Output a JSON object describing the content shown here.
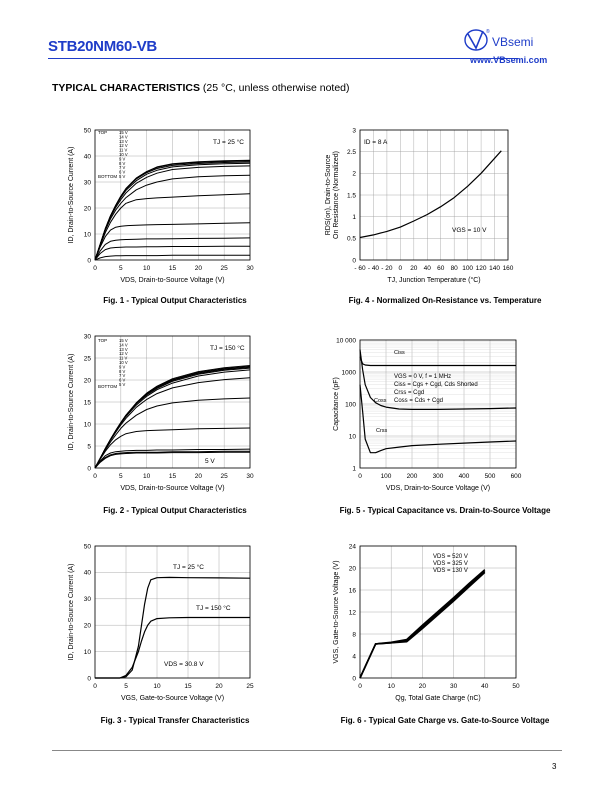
{
  "header": {
    "part_number": "STB20NM60-VB",
    "brand": "VBsemi",
    "url": "www.VBsemi.com",
    "reg": "®"
  },
  "section": {
    "title_bold": "TYPICAL CHARACTERISTICS",
    "title_rest": " (25 °C, unless otherwise noted)"
  },
  "page_number": "3",
  "charts": [
    {
      "id": "fig1",
      "caption": "Fig. 1 - Typical Output Characteristics",
      "xlabel": "VDS, Drain-to-Source Voltage (V)",
      "ylabel": "ID, Drain-to-Source Current (A)",
      "xticks": [
        "0",
        "5",
        "10",
        "15",
        "20",
        "25",
        "30"
      ],
      "yticks": [
        "0",
        "10",
        "20",
        "30",
        "40",
        "50"
      ],
      "annotation": "TJ = 25 °C",
      "legend_top": "TOP",
      "legend_bottom": "BOTTOM",
      "legend_voltages": [
        "15 V",
        "14 V",
        "13 V",
        "12 V",
        "11 V",
        "10 V",
        "9 V",
        "8 V",
        "7 V",
        "6 V",
        "5 V"
      ]
    },
    {
      "id": "fig2",
      "caption": "Fig. 2 - Typical Output Characteristics",
      "xlabel": "VDS, Drain-to-Source Voltage (V)",
      "ylabel": "ID, Drain-to-Source Current (A)",
      "xticks": [
        "0",
        "5",
        "10",
        "15",
        "20",
        "25",
        "30"
      ],
      "yticks": [
        "0",
        "5",
        "10",
        "15",
        "20",
        "25",
        "30"
      ],
      "annotation": "TJ = 150 °C",
      "curve_label": "5 V",
      "legend_top": "TOP",
      "legend_bottom": "BOTTOM",
      "legend_voltages": [
        "15 V",
        "14 V",
        "13 V",
        "12 V",
        "11 V",
        "10 V",
        "9 V",
        "8 V",
        "7 V",
        "6 V",
        "5 V"
      ]
    },
    {
      "id": "fig3",
      "caption": "Fig. 3 - Typical Transfer Characteristics",
      "xlabel": "VGS, Gate-to-Source Voltage (V)",
      "ylabel": "ID, Drain-to-Source Current (A)",
      "xticks": [
        "0",
        "5",
        "10",
        "15",
        "20",
        "25"
      ],
      "yticks": [
        "0",
        "10",
        "20",
        "30",
        "40",
        "50"
      ],
      "annotation_1": "TJ = 25 °C",
      "annotation_2": "TJ = 150 °C",
      "annotation_3": "VDS = 30.8 V"
    },
    {
      "id": "fig4",
      "caption": "Fig. 4 - Normalized On-Resistance vs. Temperature",
      "xlabel": "TJ, Junction Temperature (°C)",
      "ylabel_1": "RDS(on), Drain-to-Source",
      "ylabel_2": "On Resistance (Normalized)",
      "xticks": [
        "- 60",
        "- 40",
        "- 20",
        "0",
        "20",
        "40",
        "60",
        "80",
        "100",
        "120",
        "140",
        "160"
      ],
      "yticks": [
        "0",
        "0.5",
        "1",
        "1.5",
        "2",
        "2.5",
        "3"
      ],
      "annotation_1": "ID = 8 A",
      "annotation_2": "VGS = 10 V"
    },
    {
      "id": "fig5",
      "caption": "Fig. 5 - Typical Capacitance vs. Drain-to-Source Voltage",
      "xlabel": "VDS, Drain-to-Source Voltage (V)",
      "ylabel": "Capacitance (pF)",
      "xticks": [
        "0",
        "100",
        "200",
        "300",
        "400",
        "500",
        "600"
      ],
      "yticks": [
        "1",
        "10",
        "100",
        "1000",
        "10 000"
      ],
      "notes": [
        "VGS = 0 V, f = 1 MHz",
        "Ciss = Cgs + Cgd, Cds Shorted",
        "Crss = Cgd",
        "Coss = Cds + Cgd"
      ],
      "series_labels": [
        "Ciss",
        "Coss",
        "Crss"
      ]
    },
    {
      "id": "fig6",
      "caption": "Fig. 6 - Typical Gate Charge vs. Gate-to-Source Voltage",
      "xlabel": "Qg, Total Gate Charge (nC)",
      "ylabel": "VGS, Gate-to-Source Voltage (V)",
      "xticks": [
        "0",
        "10",
        "20",
        "30",
        "40",
        "50"
      ],
      "yticks": [
        "0",
        "4",
        "8",
        "12",
        "16",
        "20",
        "24"
      ],
      "legend": [
        "VDS = 520 V",
        "VDS = 325 V",
        "VDS = 130 V"
      ]
    }
  ],
  "chart_data": [
    {
      "type": "line",
      "title": "Fig. 1 - Typical Output Characteristics",
      "xlabel": "VDS, Drain-to-Source Voltage (V)",
      "ylabel": "ID, Drain-to-Source Current (A)",
      "xlim": [
        0,
        30
      ],
      "ylim": [
        0,
        50
      ],
      "grid": true,
      "x": [
        0,
        1,
        2,
        3,
        4,
        5,
        6,
        8,
        10,
        12,
        15,
        20,
        25,
        30
      ],
      "series": [
        {
          "name": "15 V",
          "values": [
            0,
            6,
            12,
            17,
            21,
            24.5,
            27.5,
            31.5,
            34,
            35.8,
            37,
            37.8,
            38.2,
            38.4
          ]
        },
        {
          "name": "14 V",
          "values": [
            0,
            6,
            12,
            17,
            21,
            24.5,
            27.5,
            31.5,
            34,
            35.6,
            36.8,
            37.5,
            37.9,
            38.1
          ]
        },
        {
          "name": "13 V",
          "values": [
            0,
            6,
            12,
            17,
            21,
            24.5,
            27.3,
            31.2,
            33.6,
            35.2,
            36.4,
            37.1,
            37.5,
            37.7
          ]
        },
        {
          "name": "12 V",
          "values": [
            0,
            6,
            12,
            16.8,
            20.8,
            24,
            26.8,
            30.5,
            33,
            34.5,
            35.8,
            36.6,
            37,
            37.2
          ]
        },
        {
          "name": "11 V",
          "values": [
            0,
            6,
            11.8,
            16.5,
            20.2,
            23.2,
            25.8,
            29.5,
            31.8,
            33.4,
            34.8,
            35.6,
            36,
            36.2
          ]
        },
        {
          "name": "10 V",
          "values": [
            0,
            5.8,
            11.4,
            15.8,
            19.2,
            21.8,
            24,
            27,
            28.8,
            30,
            31.2,
            32,
            32.4,
            32.6
          ]
        },
        {
          "name": "9 V",
          "values": [
            0,
            5.5,
            10.5,
            14.5,
            17.6,
            20,
            21.8,
            23.2,
            23.6,
            23.9,
            24.2,
            24.7,
            25.1,
            25.5
          ]
        },
        {
          "name": "8 V",
          "values": [
            0,
            5,
            9,
            11.5,
            12.6,
            13,
            13.2,
            13.4,
            13.5,
            13.6,
            13.7,
            13.9,
            14.1,
            14.3
          ]
        },
        {
          "name": "7 V",
          "values": [
            0,
            3.5,
            6,
            7.2,
            7.6,
            7.8,
            7.9,
            8,
            8.1,
            8.1,
            8.2,
            8.3,
            8.4,
            8.5
          ]
        },
        {
          "name": "6 V",
          "values": [
            0,
            2.5,
            4,
            4.6,
            4.8,
            4.9,
            5,
            5,
            5.1,
            5.1,
            5.2,
            5.2,
            5.3,
            5.3
          ]
        },
        {
          "name": "5 V",
          "values": [
            0,
            0.8,
            1.3,
            1.5,
            1.6,
            1.6,
            1.7,
            1.7,
            1.7,
            1.7,
            1.8,
            1.8,
            1.8,
            1.8
          ]
        }
      ]
    },
    {
      "type": "line",
      "title": "Fig. 2 - Typical Output Characteristics",
      "xlabel": "VDS, Drain-to-Source Voltage (V)",
      "ylabel": "ID, Drain-to-Source Current (A)",
      "xlim": [
        0,
        30
      ],
      "ylim": [
        0,
        30
      ],
      "grid": true,
      "x": [
        0,
        1,
        2,
        3,
        4,
        5,
        6,
        8,
        10,
        12,
        15,
        20,
        25,
        30
      ],
      "series": [
        {
          "name": "15 V",
          "values": [
            0,
            2.2,
            4.4,
            6.5,
            8.5,
            10.3,
            12,
            14.8,
            17,
            18.6,
            20.3,
            21.9,
            22.8,
            23.3
          ]
        },
        {
          "name": "14 V",
          "values": [
            0,
            2.2,
            4.4,
            6.5,
            8.5,
            10.3,
            12,
            14.8,
            17,
            18.5,
            20.1,
            21.7,
            22.6,
            23.1
          ]
        },
        {
          "name": "13 V",
          "values": [
            0,
            2.2,
            4.4,
            6.5,
            8.5,
            10.3,
            12,
            14.7,
            16.8,
            18.3,
            19.9,
            21.5,
            22.4,
            22.9
          ]
        },
        {
          "name": "12 V",
          "values": [
            0,
            2.2,
            4.4,
            6.5,
            8.4,
            10.2,
            11.9,
            14.6,
            16.6,
            18.1,
            19.7,
            21.3,
            22.2,
            22.7
          ]
        },
        {
          "name": "11 V",
          "values": [
            0,
            2.2,
            4.4,
            6.4,
            8.3,
            10.1,
            11.7,
            14.3,
            16.3,
            17.8,
            19.3,
            20.9,
            21.8,
            22.3
          ]
        },
        {
          "name": "10 V",
          "values": [
            0,
            2.2,
            4.3,
            6.3,
            8.1,
            9.8,
            11.3,
            13.8,
            15.6,
            16.9,
            18.2,
            19.4,
            20.1,
            20.5
          ]
        },
        {
          "name": "9 V",
          "values": [
            0,
            2.1,
            4.1,
            5.9,
            7.5,
            9,
            10.2,
            12,
            13.3,
            14.1,
            14.8,
            15.4,
            15.7,
            15.9
          ]
        },
        {
          "name": "8 V",
          "values": [
            0,
            2,
            3.8,
            5.3,
            6.4,
            7.2,
            7.8,
            8.3,
            8.5,
            8.6,
            8.7,
            8.9,
            9,
            9.1
          ]
        },
        {
          "name": "7 V",
          "values": [
            0,
            1.6,
            2.8,
            3.4,
            3.7,
            3.8,
            3.9,
            4,
            4,
            4.1,
            4.1,
            4.2,
            4.2,
            4.3
          ]
        },
        {
          "name": "6 V",
          "values": [
            0,
            1.4,
            2.4,
            3,
            3.3,
            3.4,
            3.5,
            3.6,
            3.6,
            3.6,
            3.7,
            3.7,
            3.8,
            3.8
          ]
        },
        {
          "name": "5 V",
          "values": [
            0,
            1.3,
            2.2,
            2.8,
            3.1,
            3.2,
            3.3,
            3.4,
            3.4,
            3.4,
            3.5,
            3.5,
            3.6,
            3.6
          ]
        }
      ]
    },
    {
      "type": "line",
      "title": "Fig. 3 - Typical Transfer Characteristics",
      "xlabel": "VGS, Gate-to-Source Voltage (V)",
      "ylabel": "ID, Drain-to-Source Current (A)",
      "xlim": [
        0,
        25
      ],
      "ylim": [
        0,
        50
      ],
      "grid": true,
      "x": [
        0,
        4,
        5,
        6,
        7,
        7.5,
        8,
        8.5,
        9,
        10,
        12,
        15,
        20,
        25
      ],
      "series": [
        {
          "name": "TJ = 25 °C",
          "values": [
            0,
            0,
            0.5,
            3,
            12,
            20,
            28,
            34,
            37.2,
            38,
            38.1,
            38,
            37.9,
            37.8
          ]
        },
        {
          "name": "TJ = 150 °C",
          "values": [
            0,
            0,
            1,
            4,
            10,
            14,
            17.5,
            20,
            21.5,
            22.5,
            22.8,
            22.9,
            22.9,
            22.9
          ]
        }
      ]
    },
    {
      "type": "line",
      "title": "Fig. 4 - Normalized On-Resistance vs. Temperature",
      "xlabel": "TJ, Junction Temperature (°C)",
      "ylabel": "RDS(on), Drain-to-Source On Resistance (Normalized)",
      "xlim": [
        -60,
        160
      ],
      "ylim": [
        0,
        3
      ],
      "grid": true,
      "x": [
        -60,
        -40,
        -20,
        0,
        20,
        40,
        60,
        80,
        100,
        120,
        150
      ],
      "series": [
        {
          "name": "",
          "values": [
            0.52,
            0.58,
            0.66,
            0.76,
            0.9,
            1.05,
            1.23,
            1.44,
            1.7,
            2.0,
            2.52
          ]
        }
      ]
    },
    {
      "type": "line",
      "title": "Fig. 5 - Typical Capacitance vs. Drain-to-Source Voltage",
      "xlabel": "VDS, Drain-to-Source Voltage (V)",
      "ylabel": "Capacitance (pF)",
      "xlim": [
        0,
        600
      ],
      "ylim": [
        1,
        10000
      ],
      "yscale": "log",
      "grid": true,
      "x": [
        0,
        10,
        20,
        40,
        60,
        80,
        100,
        150,
        200,
        300,
        400,
        500,
        600
      ],
      "series": [
        {
          "name": "Ciss",
          "values": [
            3000,
            1800,
            1650,
            1600,
            1600,
            1600,
            1600,
            1600,
            1600,
            1600,
            1600,
            1600,
            1600
          ]
        },
        {
          "name": "Coss",
          "values": [
            5000,
            1200,
            400,
            160,
            110,
            90,
            80,
            70,
            68,
            68,
            70,
            72,
            75
          ]
        },
        {
          "name": "Crss",
          "values": [
            400,
            60,
            8,
            3,
            3,
            3.5,
            4,
            4.5,
            5,
            5.5,
            6,
            6.5,
            7
          ]
        }
      ]
    },
    {
      "type": "line",
      "title": "Fig. 6 - Typical Gate Charge vs. Gate-to-Source Voltage",
      "xlabel": "Qg, Total Gate Charge (nC)",
      "ylabel": "VGS, Gate-to-Source Voltage (V)",
      "xlim": [
        0,
        50
      ],
      "ylim": [
        0,
        24
      ],
      "grid": true,
      "x": [
        0,
        5,
        10,
        15,
        20,
        25,
        30,
        35,
        40
      ],
      "series": [
        {
          "name": "VDS = 520 V",
          "values": [
            0,
            6.2,
            6.4,
            6.6,
            9,
            11.5,
            14,
            16.6,
            19.2
          ]
        },
        {
          "name": "VDS = 325 V",
          "values": [
            0,
            6.2,
            6.4,
            6.8,
            9.3,
            11.8,
            14.3,
            16.9,
            19.4
          ]
        },
        {
          "name": "VDS = 130 V",
          "values": [
            0,
            6.2,
            6.5,
            7,
            9.6,
            12.1,
            14.6,
            17.2,
            19.7
          ]
        }
      ]
    }
  ]
}
